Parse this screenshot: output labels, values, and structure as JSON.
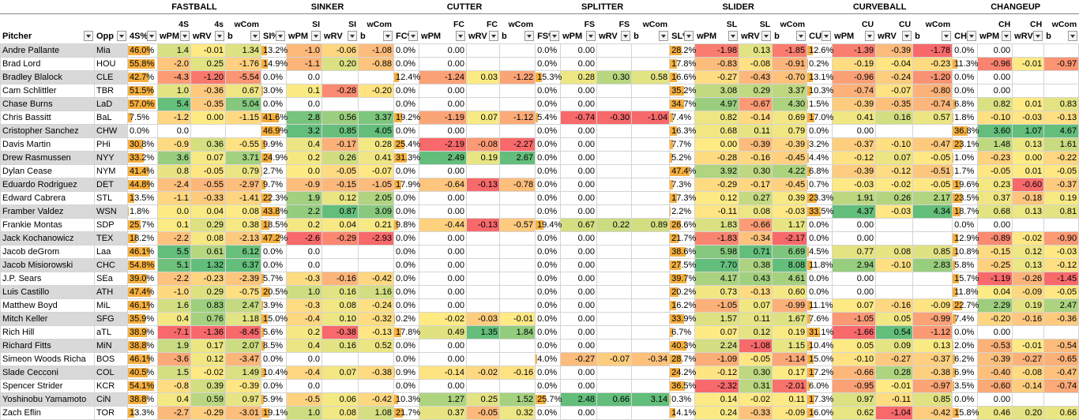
{
  "groups": [
    "FASTBALL",
    "SINKER",
    "CUTTER",
    "SPLITTER",
    "SLIDER",
    "CURVEBALL",
    "CHANGEUP"
  ],
  "sub_top": [
    "",
    "",
    "",
    "4S",
    "4s",
    "wCom",
    "",
    "SI",
    "SI",
    "wCom",
    "",
    "FC",
    "FC",
    "wCom",
    "",
    "FS",
    "FS",
    "wCom",
    "",
    "SL",
    "SL",
    "wCom",
    "",
    "CU",
    "CU",
    "wCom",
    "",
    "CH",
    "CH",
    "wCom"
  ],
  "headers": [
    "Pitcher",
    "Opp",
    "4S%",
    "wPM",
    "wRV",
    "b",
    "SI%",
    "wPM",
    "wRV",
    "b",
    "FC%",
    "wPM",
    "wRV",
    "b",
    "FS%",
    "wPM",
    "wRV",
    "b",
    "SL%",
    "wPM",
    "wRV",
    "b",
    "CU%",
    "wPM",
    "wRV",
    "b",
    "CH%",
    "wPM",
    "wRV",
    "b"
  ],
  "colors": {
    "green": "#63be7b",
    "yellow": "#ffeb84",
    "red": "#f8696b",
    "white": "#ffffff",
    "bar": "#f5b041",
    "gray": "#d9d9d9"
  },
  "rows": [
    [
      "Andre Pallante",
      "Mia",
      "46.0%",
      "1.4",
      "-0.01",
      "1.34",
      "13.2%",
      "-1.0",
      "-0.06",
      "-1.08",
      "0.0%",
      "0.00",
      "",
      "",
      "0.0%",
      "0.00",
      "",
      "",
      "28.2%",
      "-1.98",
      "0.13",
      "-1.85",
      "12.6%",
      "-1.39",
      "-0.39",
      "-1.78",
      "0.0%",
      "0.00",
      "",
      ""
    ],
    [
      "Brad Lord",
      "HOU",
      "55.8%",
      "-2.0",
      "0.25",
      "-1.76",
      "14.9%",
      "-1.1",
      "0.20",
      "-0.88",
      "0.0%",
      "0.00",
      "",
      "",
      "0.0%",
      "0.00",
      "",
      "",
      "17.8%",
      "-0.83",
      "-0.08",
      "-0.91",
      "0.2%",
      "-0.19",
      "-0.04",
      "-0.23",
      "11.3%",
      "-0.96",
      "-0.01",
      "-0.97"
    ],
    [
      "Bradley Blalock",
      "CLE",
      "42.7%",
      "-4.3",
      "-1.20",
      "-5.54",
      "0.0%",
      "0.0",
      "",
      "",
      "12.4%",
      "-1.24",
      "0.03",
      "-1.22",
      "15.3%",
      "0.28",
      "0.30",
      "0.58",
      "16.6%",
      "-0.27",
      "-0.43",
      "-0.70",
      "13.1%",
      "-0.96",
      "-0.24",
      "-1.20",
      "0.0%",
      "0.00",
      "",
      ""
    ],
    [
      "Cam Schlittler",
      "TBR",
      "51.5%",
      "1.0",
      "-0.36",
      "0.67",
      "3.0%",
      "0.1",
      "-0.28",
      "-0.20",
      "0.0%",
      "0.00",
      "",
      "",
      "0.0%",
      "0.00",
      "",
      "",
      "35.2%",
      "3.08",
      "0.29",
      "3.37",
      "10.3%",
      "-0.74",
      "-0.07",
      "-0.80",
      "0.0%",
      "0.00",
      "",
      ""
    ],
    [
      "Chase Burns",
      "LaD",
      "57.0%",
      "5.4",
      "-0.35",
      "5.04",
      "0.0%",
      "0.0",
      "",
      "",
      "0.0%",
      "0.00",
      "",
      "",
      "0.0%",
      "0.00",
      "",
      "",
      "34.7%",
      "4.97",
      "-0.67",
      "4.30",
      "1.5%",
      "-0.39",
      "-0.35",
      "-0.74",
      "6.8%",
      "0.82",
      "0.01",
      "0.83"
    ],
    [
      "Chris Bassitt",
      "BaL",
      "7.5%",
      "-1.2",
      "0.00",
      "-1.15",
      "41.6%",
      "2.8",
      "0.56",
      "3.37",
      "19.2%",
      "-1.19",
      "0.07",
      "-1.12",
      "5.4%",
      "-0.74",
      "-0.30",
      "-1.04",
      "7.4%",
      "0.82",
      "-0.14",
      "0.69",
      "17.0%",
      "0.41",
      "0.16",
      "0.57",
      "1.8%",
      "-0.10",
      "-0.03",
      "-0.13"
    ],
    [
      "Cristopher Sanchez",
      "CHW",
      "0.0%",
      "0.0",
      "",
      "",
      "46.9%",
      "3.2",
      "0.85",
      "4.05",
      "0.0%",
      "0.00",
      "",
      "",
      "0.0%",
      "0.00",
      "",
      "",
      "16.3%",
      "0.68",
      "0.11",
      "0.79",
      "0.0%",
      "0.00",
      "",
      "",
      "36.8%",
      "3.60",
      "1.07",
      "4.67"
    ],
    [
      "Davis Martin",
      "PHi",
      "30.8%",
      "-0.9",
      "0.36",
      "-0.55",
      "9.9%",
      "0.4",
      "-0.17",
      "0.28",
      "25.4%",
      "-2.19",
      "-0.08",
      "-2.27",
      "0.0%",
      "0.00",
      "",
      "",
      "7.7%",
      "0.00",
      "-0.39",
      "-0.39",
      "3.2%",
      "-0.37",
      "-0.10",
      "-0.47",
      "23.1%",
      "1.48",
      "0.13",
      "1.61"
    ],
    [
      "Drew Rasmussen",
      "NYY",
      "33.2%",
      "3.6",
      "0.07",
      "3.71",
      "24.9%",
      "0.2",
      "0.26",
      "0.41",
      "31.3%",
      "2.49",
      "0.19",
      "2.67",
      "0.0%",
      "0.00",
      "",
      "",
      "5.2%",
      "-0.28",
      "-0.16",
      "-0.45",
      "4.4%",
      "-0.12",
      "0.07",
      "-0.05",
      "1.0%",
      "-0.23",
      "0.00",
      "-0.22"
    ],
    [
      "Dylan Cease",
      "NYM",
      "41.4%",
      "0.8",
      "-0.05",
      "0.79",
      "2.7%",
      "0.0",
      "-0.05",
      "-0.07",
      "0.0%",
      "0.00",
      "",
      "",
      "0.0%",
      "0.00",
      "",
      "",
      "47.4%",
      "3.92",
      "0.30",
      "4.22",
      "6.8%",
      "-0.39",
      "-0.12",
      "-0.51",
      "1.7%",
      "-0.05",
      "0.01",
      "-0.05"
    ],
    [
      "Eduardo Rodriguez",
      "DET",
      "44.8%",
      "-2.4",
      "-0.55",
      "-2.97",
      "9.7%",
      "-0.9",
      "-0.15",
      "-1.05",
      "17.9%",
      "-0.64",
      "-0.13",
      "-0.78",
      "0.0%",
      "0.00",
      "",
      "",
      "7.3%",
      "-0.29",
      "-0.17",
      "-0.45",
      "0.7%",
      "-0.03",
      "-0.02",
      "-0.05",
      "19.6%",
      "0.23",
      "-0.60",
      "-0.37"
    ],
    [
      "Edward Cabrera",
      "STL",
      "13.5%",
      "-1.1",
      "-0.33",
      "-1.41",
      "22.3%",
      "1.9",
      "0.12",
      "2.05",
      "0.0%",
      "0.00",
      "",
      "",
      "0.0%",
      "0.00",
      "",
      "",
      "17.3%",
      "0.12",
      "0.27",
      "0.39",
      "23.3%",
      "1.91",
      "0.26",
      "2.17",
      "23.5%",
      "0.37",
      "-0.18",
      "0.19"
    ],
    [
      "Framber Valdez",
      "WSN",
      "1.8%",
      "0.0",
      "0.04",
      "0.08",
      "43.8%",
      "2.2",
      "0.87",
      "3.09",
      "0.0%",
      "0.00",
      "",
      "",
      "0.0%",
      "0.00",
      "",
      "",
      "2.2%",
      "-0.11",
      "0.08",
      "-0.03",
      "33.5%",
      "4.37",
      "-0.03",
      "4.34",
      "18.7%",
      "0.68",
      "0.13",
      "0.81"
    ],
    [
      "Frankie Montas",
      "SDP",
      "25.7%",
      "0.1",
      "0.29",
      "0.38",
      "18.5%",
      "0.2",
      "0.04",
      "0.21",
      "9.8%",
      "-0.44",
      "-0.13",
      "-0.57",
      "19.4%",
      "0.67",
      "0.22",
      "0.89",
      "26.6%",
      "1.83",
      "-0.66",
      "1.17",
      "0.0%",
      "0.00",
      "",
      "",
      "0.0%",
      "0.00",
      "",
      ""
    ],
    [
      "Jack Kochanowicz",
      "TEX",
      "18.2%",
      "-2.2",
      "0.08",
      "-2.13",
      "47.2%",
      "-2.6",
      "-0.29",
      "-2.93",
      "0.0%",
      "0.00",
      "",
      "",
      "0.0%",
      "0.00",
      "",
      "",
      "21.7%",
      "-1.83",
      "-0.34",
      "-2.17",
      "0.0%",
      "0.00",
      "",
      "",
      "12.9%",
      "-0.89",
      "-0.02",
      "-0.90"
    ],
    [
      "Jacob deGrom",
      "Laa",
      "46.1%",
      "5.5",
      "0.61",
      "6.12",
      "0.0%",
      "0.0",
      "",
      "",
      "0.0%",
      "0.00",
      "",
      "",
      "0.0%",
      "0.00",
      "",
      "",
      "38.6%",
      "5.98",
      "0.71",
      "6.69",
      "4.5%",
      "0.77",
      "0.08",
      "0.85",
      "10.8%",
      "-0.15",
      "0.12",
      "-0.03"
    ],
    [
      "Jacob Misiorowski",
      "CHC",
      "54.8%",
      "5.1",
      "1.32",
      "6.37",
      "0.0%",
      "0.0",
      "",
      "",
      "0.0%",
      "0.00",
      "",
      "",
      "0.0%",
      "0.00",
      "",
      "",
      "27.5%",
      "7.70",
      "0.38",
      "8.08",
      "11.8%",
      "2.94",
      "-0.10",
      "2.83",
      "5.8%",
      "-0.25",
      "0.13",
      "-0.12"
    ],
    [
      "J.P. Sears",
      "SEa",
      "39.0%",
      "-2.2",
      "-0.23",
      "-2.39",
      "5.7%",
      "-0.3",
      "-0.16",
      "-0.42",
      "0.0%",
      "0.00",
      "",
      "",
      "0.0%",
      "0.00",
      "",
      "",
      "39.7%",
      "4.17",
      "0.43",
      "4.61",
      "0.0%",
      "0.00",
      "",
      "",
      "15.7%",
      "-1.19",
      "-0.26",
      "-1.45"
    ],
    [
      "Luis Castillo",
      "ATH",
      "47.4%",
      "-1.0",
      "0.29",
      "-0.75",
      "20.5%",
      "1.0",
      "0.16",
      "1.16",
      "0.0%",
      "0.00",
      "",
      "",
      "0.0%",
      "0.00",
      "",
      "",
      "20.2%",
      "0.73",
      "-0.13",
      "0.60",
      "0.0%",
      "0.00",
      "",
      "",
      "11.8%",
      "0.04",
      "-0.09",
      "-0.05"
    ],
    [
      "Matthew Boyd",
      "MiL",
      "46.1%",
      "1.6",
      "0.83",
      "2.47",
      "3.9%",
      "-0.3",
      "0.08",
      "-0.24",
      "0.0%",
      "0.00",
      "",
      "",
      "0.0%",
      "0.00",
      "",
      "",
      "16.2%",
      "-1.05",
      "0.07",
      "-0.99",
      "11.1%",
      "0.07",
      "-0.16",
      "-0.09",
      "22.7%",
      "2.29",
      "0.19",
      "2.47"
    ],
    [
      "Mitch Keller",
      "SFG",
      "35.9%",
      "0.4",
      "0.76",
      "1.18",
      "15.0%",
      "-0.4",
      "0.10",
      "-0.32",
      "0.2%",
      "-0.02",
      "-0.03",
      "-0.01",
      "0.0%",
      "0.00",
      "",
      "",
      "33.9%",
      "1.57",
      "0.11",
      "1.67",
      "7.6%",
      "-1.05",
      "0.05",
      "-0.99",
      "7.4%",
      "-0.20",
      "-0.16",
      "-0.36"
    ],
    [
      "Rich Hill",
      "aTL",
      "38.9%",
      "-7.1",
      "-1.36",
      "-8.45",
      "5.6%",
      "0.2",
      "-0.38",
      "-0.13",
      "17.8%",
      "0.49",
      "1.35",
      "1.84",
      "0.0%",
      "0.00",
      "",
      "",
      "6.7%",
      "0.07",
      "0.12",
      "0.19",
      "31.1%",
      "-1.66",
      "0.54",
      "-1.12",
      "0.0%",
      "0.00",
      "",
      ""
    ],
    [
      "Richard Fitts",
      "MiN",
      "38.8%",
      "1.9",
      "0.17",
      "2.07",
      "8.5%",
      "0.4",
      "0.16",
      "0.52",
      "0.0%",
      "0.00",
      "",
      "",
      "0.0%",
      "0.00",
      "",
      "",
      "40.3%",
      "2.24",
      "-1.08",
      "1.15",
      "10.4%",
      "0.05",
      "0.09",
      "0.13",
      "2.0%",
      "-0.53",
      "-0.01",
      "-0.54"
    ],
    [
      "Simeon Woods Richa",
      "BOS",
      "46.1%",
      "-3.6",
      "0.12",
      "-3.47",
      "0.0%",
      "0.0",
      "",
      "",
      "0.0%",
      "0.00",
      "",
      "",
      "4.0%",
      "-0.27",
      "-0.07",
      "-0.34",
      "28.7%",
      "-1.09",
      "-0.05",
      "-1.14",
      "15.0%",
      "-0.10",
      "-0.27",
      "-0.37",
      "6.2%",
      "-0.39",
      "-0.27",
      "-0.65"
    ],
    [
      "Slade Cecconi",
      "COL",
      "40.5%",
      "1.5",
      "-0.02",
      "1.49",
      "10.4%",
      "-0.4",
      "0.07",
      "-0.38",
      "0.9%",
      "-0.14",
      "-0.02",
      "-0.16",
      "0.0%",
      "0.00",
      "",
      "",
      "24.2%",
      "-0.12",
      "0.30",
      "0.17",
      "17.2%",
      "-0.66",
      "0.28",
      "-0.38",
      "6.9%",
      "-0.40",
      "-0.08",
      "-0.47"
    ],
    [
      "Spencer Strider",
      "KCR",
      "54.1%",
      "-0.8",
      "0.39",
      "-0.39",
      "0.0%",
      "0.0",
      "",
      "",
      "0.0%",
      "0.00",
      "",
      "",
      "0.0%",
      "0.00",
      "",
      "",
      "36.5%",
      "-2.32",
      "0.31",
      "-2.01",
      "6.0%",
      "-0.95",
      "-0.01",
      "-0.97",
      "3.5%",
      "-0.60",
      "-0.14",
      "-0.74"
    ],
    [
      "Yoshinobu Yamamoto",
      "CiN",
      "38.8%",
      "0.4",
      "0.59",
      "0.97",
      "5.9%",
      "-0.5",
      "0.06",
      "-0.42",
      "10.3%",
      "1.27",
      "0.25",
      "1.52",
      "25.7%",
      "2.48",
      "0.66",
      "3.14",
      "0.3%",
      "0.14",
      "-0.02",
      "0.11",
      "17.3%",
      "0.97",
      "-0.11",
      "0.85",
      "0.0%",
      "0.00",
      "",
      ""
    ],
    [
      "Zach Eflin",
      "TOR",
      "13.3%",
      "-2.7",
      "-0.29",
      "-3.01",
      "19.1%",
      "1.0",
      "0.08",
      "1.08",
      "21.7%",
      "0.37",
      "-0.05",
      "0.32",
      "0.0%",
      "0.00",
      "",
      "",
      "14.1%",
      "0.24",
      "-0.33",
      "-0.09",
      "16.0%",
      "0.62",
      "-1.04",
      "-0.42",
      "15.8%",
      "0.46",
      "0.20",
      "0.66"
    ]
  ]
}
